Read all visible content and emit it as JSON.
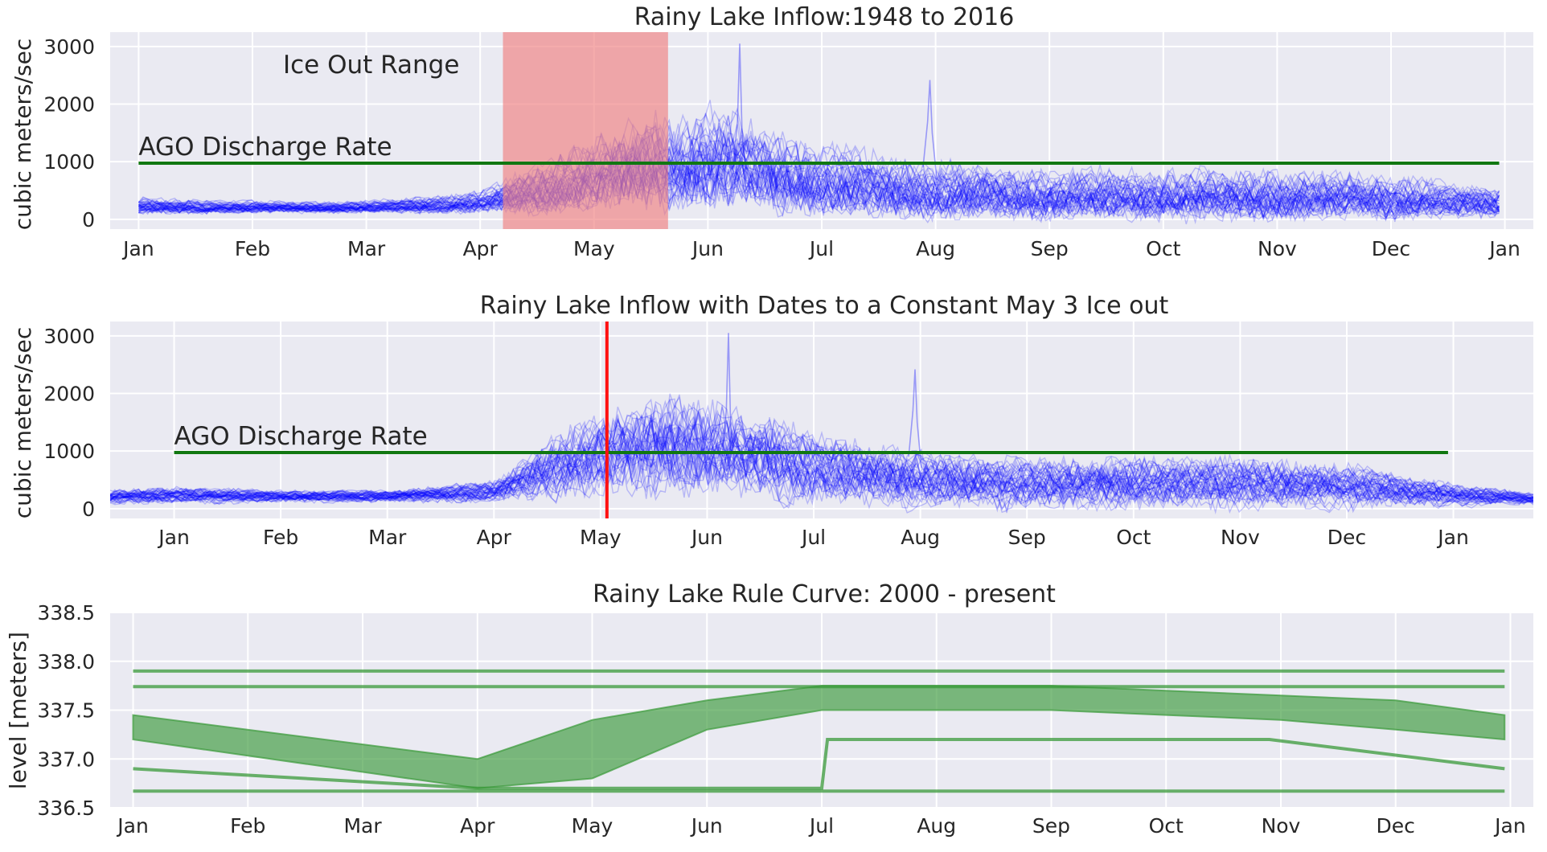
{
  "colors": {
    "inflow": "#0000ff",
    "discharge": "#117711",
    "iceband": "#f08080",
    "iceline": "#ff1111",
    "rule": "#3a9a3a"
  },
  "chart_data": [
    {
      "type": "line",
      "title": "Rainy Lake Inflow:1948 to 2016",
      "ylabel": "cubic meters/sec",
      "xlabel": "",
      "x_ticks": [
        "Jan",
        "Feb",
        "Mar",
        "Apr",
        "May",
        "Jun",
        "Jul",
        "Aug",
        "Sep",
        "Oct",
        "Nov",
        "Dec",
        "Jan"
      ],
      "y_ticks": [
        "0",
        "1000",
        "2000",
        "3000"
      ],
      "ylim": [
        -170,
        3250
      ],
      "xlim": [
        -0.25,
        12.25
      ],
      "grid": true,
      "series_note": "Daily inflow traces, 1948-2016 (many overlapping translucent blue lines)",
      "envelope": {
        "month": [
          0,
          1,
          2,
          3,
          3.5,
          4,
          4.5,
          5,
          5.5,
          6,
          7,
          8,
          9,
          10,
          11,
          11.95
        ],
        "typical_low": [
          100,
          120,
          120,
          130,
          150,
          250,
          300,
          300,
          250,
          150,
          80,
          50,
          50,
          50,
          50,
          70
        ],
        "typical_high": [
          350,
          300,
          300,
          450,
          900,
          1300,
          1700,
          1800,
          1500,
          1200,
          900,
          800,
          800,
          800,
          700,
          500
        ]
      },
      "peaks": [
        {
          "month": 5.28,
          "value": 3050
        },
        {
          "month": 6.95,
          "value": 2420
        }
      ],
      "ago_discharge": {
        "label": "AGO Discharge Rate",
        "value": 975,
        "x_start": 0,
        "x_end": 11.95
      },
      "ice_out_range": {
        "label": "Ice Out Range",
        "x_start": 3.2,
        "x_end": 4.65
      }
    },
    {
      "type": "line",
      "title": "Rainy Lake Inflow with Dates to a Constant May 3 Ice out",
      "ylabel": "cubic meters/sec",
      "xlabel": "",
      "x_ticks": [
        "Jan",
        "Feb",
        "Mar",
        "Apr",
        "May",
        "Jun",
        "Jul",
        "Aug",
        "Sep",
        "Oct",
        "Nov",
        "Dec",
        "Jan"
      ],
      "y_ticks": [
        "0",
        "1000",
        "2000",
        "3000"
      ],
      "ylim": [
        -170,
        3250
      ],
      "xlim": [
        -0.6,
        12.75
      ],
      "grid": true,
      "series_note": "Daily inflow traces shifted so ice-out falls on May 3",
      "envelope": {
        "month": [
          -0.6,
          0,
          1,
          2,
          3,
          3.5,
          4,
          4.5,
          5,
          5.5,
          6,
          7,
          8,
          9,
          10,
          11,
          12,
          12.75
        ],
        "typical_low": [
          100,
          100,
          120,
          120,
          130,
          200,
          300,
          350,
          300,
          250,
          150,
          80,
          50,
          50,
          50,
          50,
          60,
          80
        ],
        "typical_high": [
          300,
          350,
          300,
          300,
          450,
          1100,
          1500,
          1800,
          1700,
          1500,
          1200,
          900,
          800,
          800,
          800,
          700,
          400,
          250
        ]
      },
      "peaks": [
        {
          "month": 5.2,
          "value": 3050
        },
        {
          "month": 6.95,
          "value": 2420
        }
      ],
      "ago_discharge": {
        "label": "AGO Discharge Rate",
        "value": 975,
        "x_start": 0,
        "x_end": 11.95
      },
      "ice_out_line": {
        "month": 4.06
      }
    },
    {
      "type": "line",
      "title": "Rainy Lake Rule Curve: 2000 - present",
      "ylabel": "level [meters]",
      "xlabel": "",
      "x_ticks": [
        "Jan",
        "Feb",
        "Mar",
        "Apr",
        "May",
        "Jun",
        "Jul",
        "Aug",
        "Sep",
        "Oct",
        "Nov",
        "Dec",
        "Jan"
      ],
      "y_ticks": [
        "336.5",
        "337.0",
        "337.5",
        "338.0",
        "338.5"
      ],
      "ylim": [
        336.5,
        338.5
      ],
      "xlim": [
        -0.2,
        12.2
      ],
      "grid": true,
      "band": {
        "month": [
          0,
          3,
          4,
          5,
          6,
          7,
          8,
          9,
          10,
          11,
          11.95
        ],
        "upper": [
          337.45,
          337.0,
          337.4,
          337.6,
          337.75,
          337.75,
          337.75,
          337.7,
          337.65,
          337.6,
          337.45
        ],
        "lower": [
          337.2,
          336.7,
          336.8,
          337.3,
          337.5,
          337.5,
          337.5,
          337.45,
          337.4,
          337.3,
          337.2
        ]
      },
      "lines": [
        {
          "x": [
            0,
            11.95
          ],
          "y": [
            337.9,
            337.9
          ]
        },
        {
          "x": [
            0,
            11.95
          ],
          "y": [
            337.74,
            337.74
          ]
        },
        {
          "x": [
            0,
            11.95
          ],
          "y": [
            336.67,
            336.67
          ]
        },
        {
          "x": [
            0,
            3,
            6,
            6.05,
            9.9,
            11.95
          ],
          "y": [
            336.9,
            336.7,
            336.7,
            337.2,
            337.2,
            336.9
          ]
        }
      ]
    }
  ]
}
